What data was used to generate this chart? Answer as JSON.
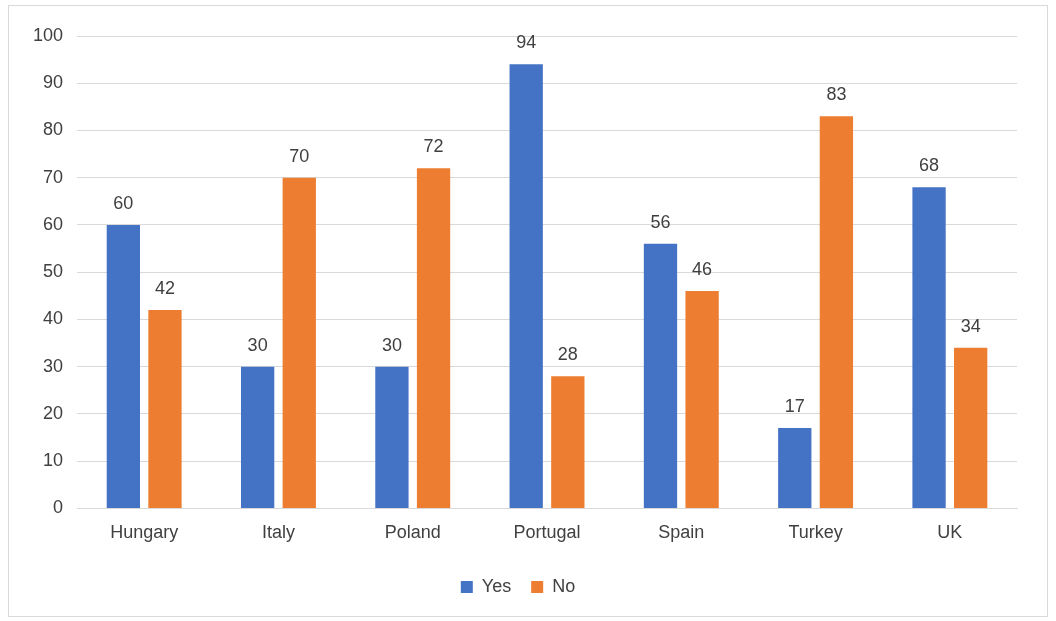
{
  "chart_data": {
    "type": "bar",
    "categories": [
      "Hungary",
      "Italy",
      "Poland",
      "Portugal",
      "Spain",
      "Turkey",
      "UK"
    ],
    "series": [
      {
        "name": "Yes",
        "color": "#4472c4",
        "values": [
          60,
          30,
          30,
          94,
          56,
          17,
          68
        ]
      },
      {
        "name": "No",
        "color": "#ed7d31",
        "values": [
          42,
          70,
          72,
          28,
          46,
          83,
          34
        ]
      }
    ],
    "ylim": [
      0,
      100
    ],
    "yticks": [
      0,
      10,
      20,
      30,
      40,
      50,
      60,
      70,
      80,
      90,
      100
    ],
    "grid": "y",
    "legend": "bottom",
    "data_labels": true
  }
}
